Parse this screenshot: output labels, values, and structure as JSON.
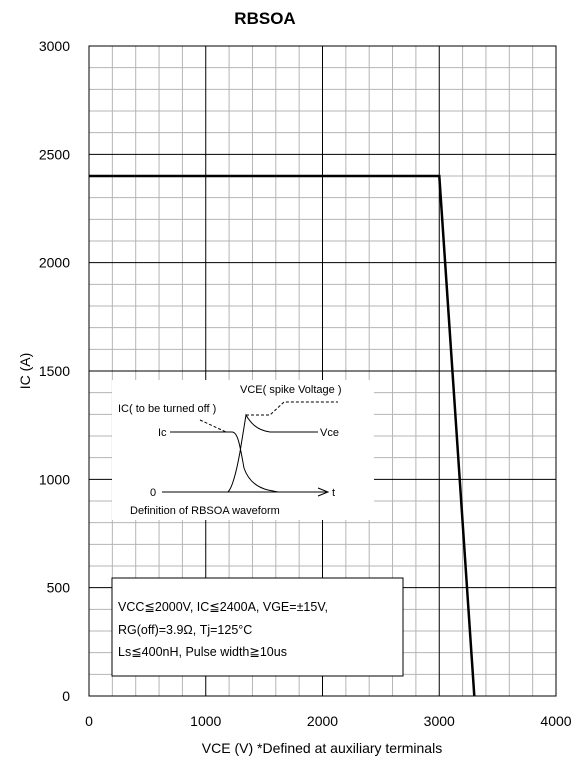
{
  "chart_data": {
    "type": "line",
    "title": "RBSOA",
    "xlabel": "VCE (V) *Defined at auxiliary terminals",
    "ylabel": "IC (A)",
    "xlim": [
      0,
      4000
    ],
    "ylim": [
      0,
      3000
    ],
    "x_ticks": [
      "0",
      "1000",
      "2000",
      "3000",
      "4000"
    ],
    "y_ticks": [
      "0",
      "500",
      "1000",
      "1500",
      "2000",
      "2500",
      "3000"
    ],
    "grid": {
      "major": true,
      "minor": true,
      "minor_x_step": 200,
      "minor_y_step": 100
    },
    "series": [
      {
        "points": [
          [
            0,
            2400
          ],
          [
            3000,
            2400
          ],
          [
            3300,
            0
          ]
        ],
        "color": "#000000"
      }
    ],
    "inset": {
      "caption": "Definition of RBSOA waveform",
      "labels": {
        "vce_spike": "VCE( spike Voltage )",
        "ic_turned_off": "IC( to be turned off )",
        "ic": "Ic",
        "vce": "Vce",
        "zero": "0",
        "t": "t"
      }
    },
    "conditions": [
      "VCC≦2000V, IC≦2400A, VGE=±15V,",
      "RG(off)=3.9Ω, Tj=125°C",
      "Ls≦400nH, Pulse width≧10us"
    ]
  }
}
